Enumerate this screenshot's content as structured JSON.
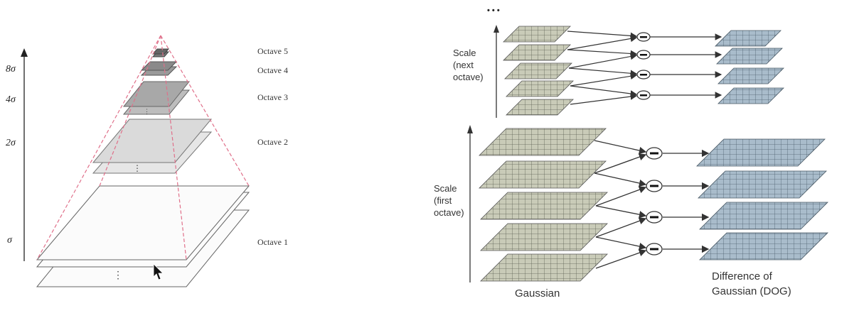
{
  "left_diagram": {
    "axis_ticks": [
      "8σ",
      "4σ",
      "2σ",
      "σ"
    ],
    "octaves": [
      "Octave 5",
      "Octave 4",
      "Octave 3",
      "Octave 2",
      "Octave 1"
    ],
    "dots": "⋮"
  },
  "right_diagram": {
    "top_ellipsis": "• • •",
    "scale_next": [
      "Scale",
      "(next",
      "octave)"
    ],
    "scale_first": [
      "Scale",
      "(first",
      "octave)"
    ],
    "minus": "−",
    "gaussian_label": "Gaussian",
    "dog_label": [
      "Difference of",
      "Gaussian (DOG)"
    ]
  },
  "colors": {
    "gaussian_fill": "#c9cbb8",
    "dog_fill": "#a9bccb",
    "pyramid_line": "#e0708a"
  }
}
